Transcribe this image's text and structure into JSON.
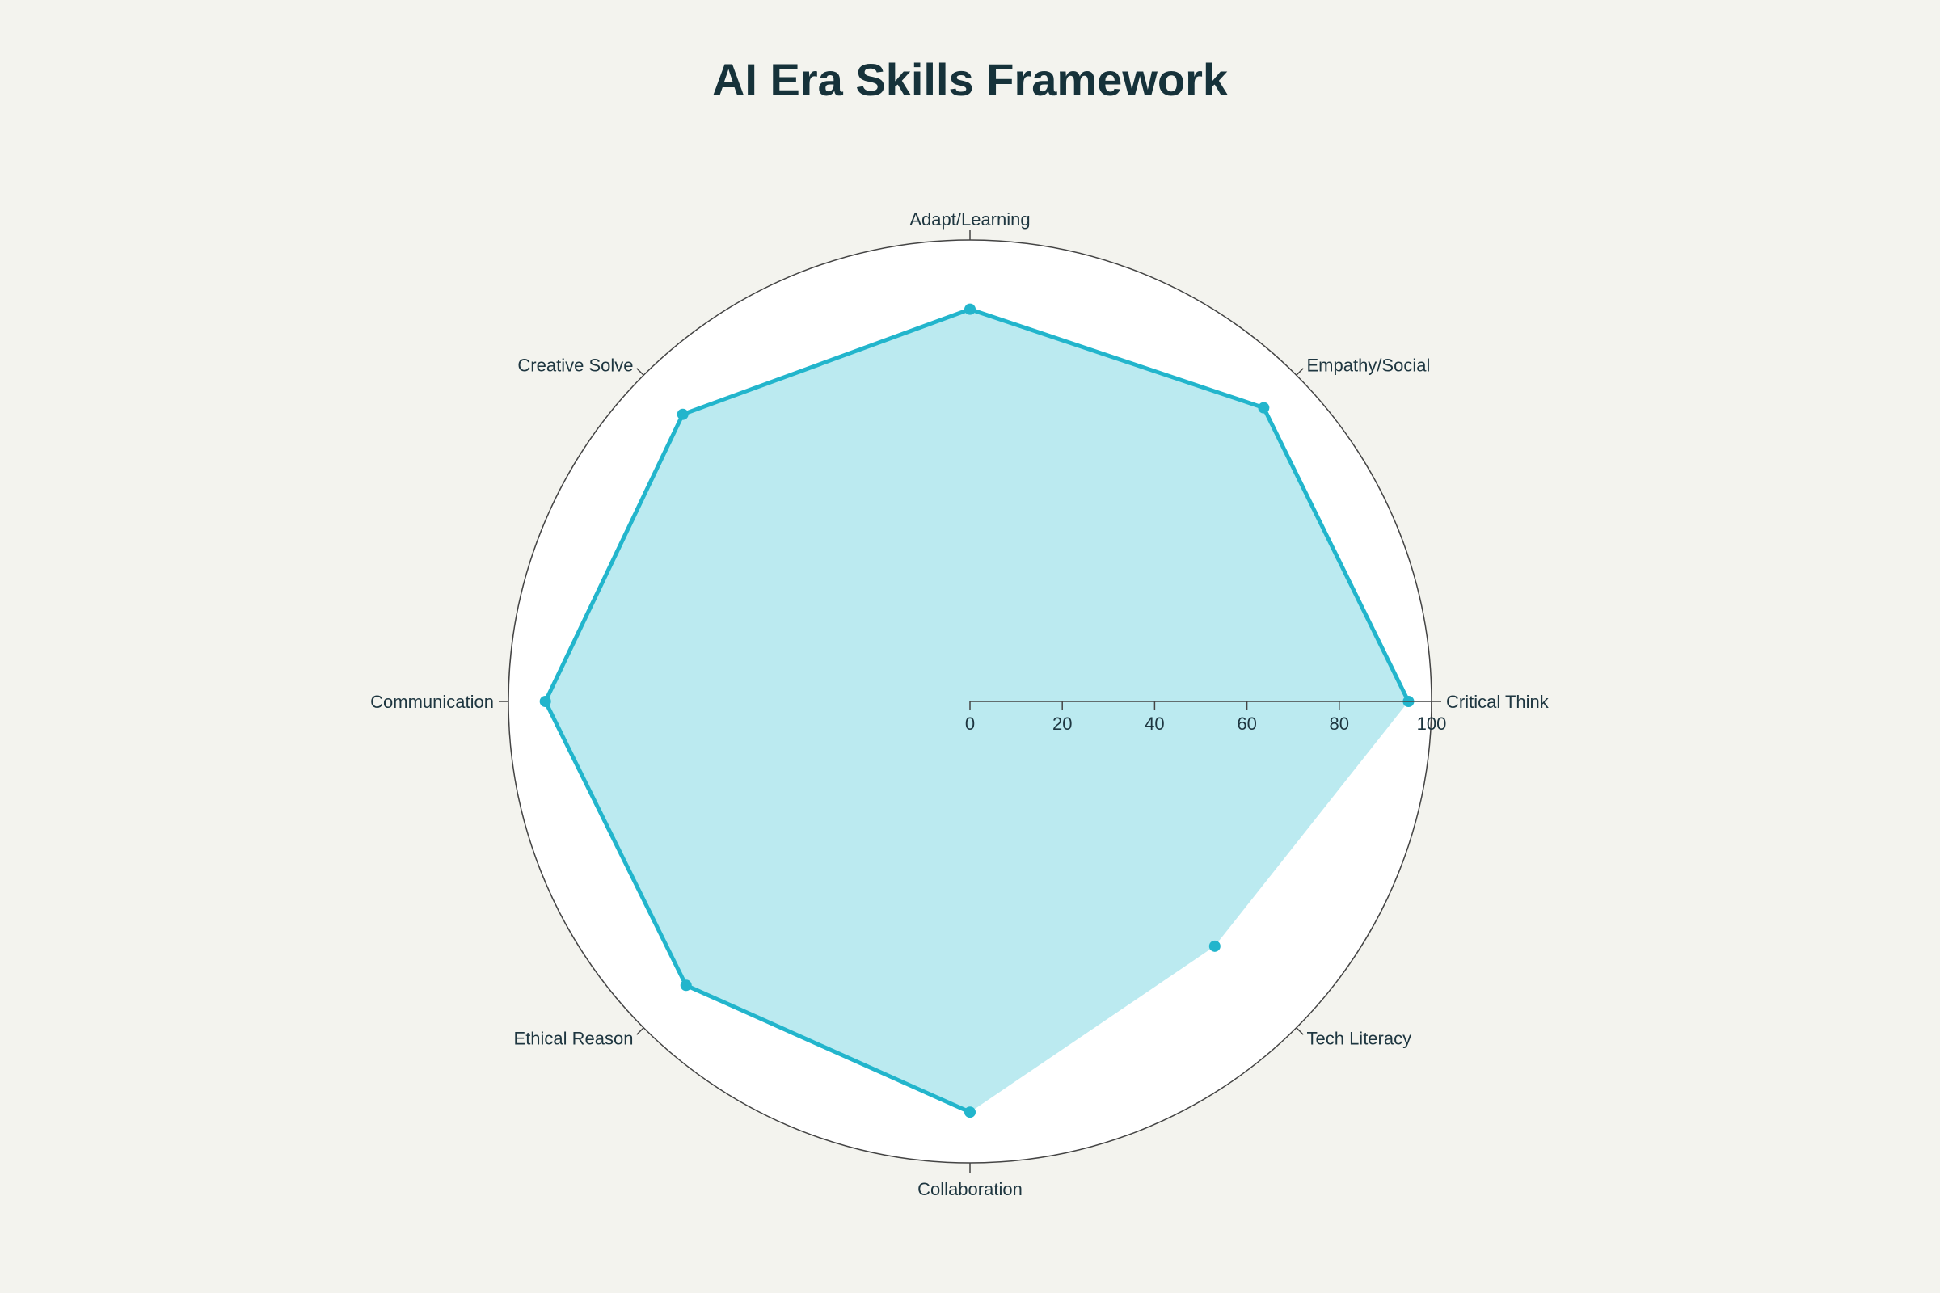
{
  "chart_data": {
    "type": "radar",
    "title": "AI Era Skills Framework",
    "categories": [
      "Critical Think",
      "Empathy/Social",
      "Adapt/Learning",
      "Creative Solve",
      "Communication",
      "Ethical Reason",
      "Collaboration",
      "Tech Literacy"
    ],
    "series": [
      {
        "values": [
          95,
          90,
          85,
          88,
          92,
          87,
          89,
          75
        ]
      }
    ],
    "radial_range": [
      0,
      100
    ],
    "radial_ticks": [
      0,
      20,
      40,
      60,
      80,
      100
    ],
    "grid": false,
    "legend": "none",
    "colors": {
      "line": "#22b5cc",
      "fill": "#bbeaf0",
      "background": "#f3f3ee",
      "plot_background": "#ffffff",
      "axis": "#444444",
      "text": "#1e3640"
    }
  }
}
